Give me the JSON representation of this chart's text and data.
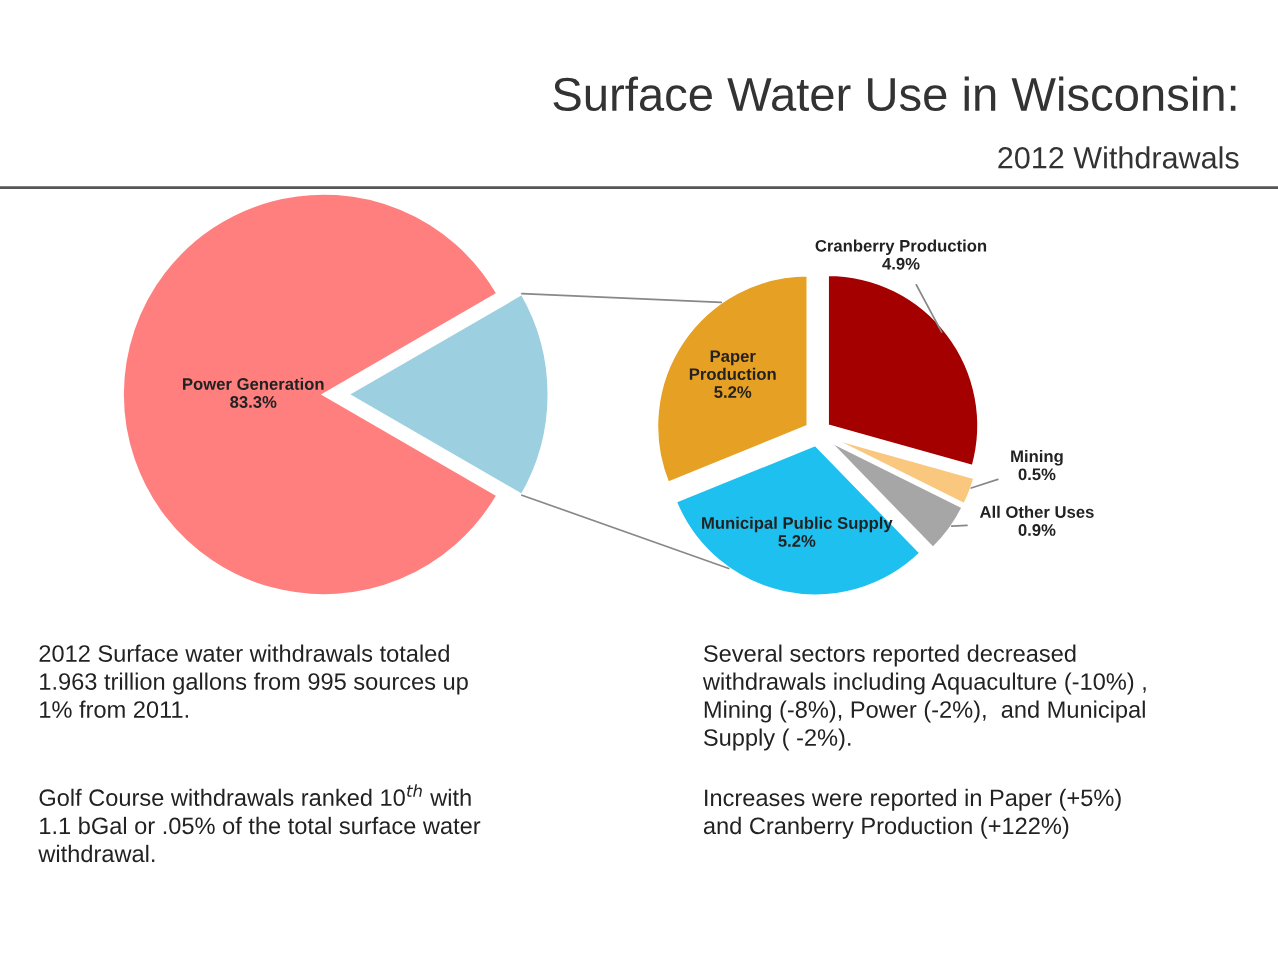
{
  "chart_data": [
    {
      "type": "pie",
      "categories": [
        "Power Generation",
        null
      ],
      "values": [
        83.3,
        16.7
      ],
      "colors": [
        "#ff7f7f",
        "#9ccfe0"
      ],
      "value_labels": [
        "83.3%",
        null
      ],
      "annotations": [
        "2012 Surface water withdrawals totaled\n1.963 trillion gallons from 995 sources up\n1% from 2011.",
        "Golf Course withdrawals ranked 10$^{th}$ with\n1.1 bGal or .05% of the total surface water\nwithdrawal."
      ]
    },
    {
      "type": "pie",
      "title": "Surface Water Use in Wisconsin:",
      "subtitle": "2012 Withdrawals",
      "categories": [
        "Cranberry Production",
        "Mining",
        "All Other Uses",
        "Municipal Public Supply",
        "Paper\nProduction"
      ],
      "values": [
        4.9,
        0.5,
        0.9,
        5.2,
        5.2
      ],
      "colors": [
        "#a50000",
        "#f9c77e",
        "#a6a6a6",
        "#1ec0f0",
        "#e6a024"
      ],
      "value_labels": [
        "4.9%",
        "0.5%",
        "0.9%",
        "5.2%",
        "5.2%"
      ],
      "annotations": [
        "Several sectors reported decreased\nwithdrawals including Aquaculture (-10%) ,\nMining (-8%), Power (-2%),  and Municipal\nSupply ( -2%).",
        "Increases were reported in Paper (+5%)\nand Cranberry Production (+122%)"
      ]
    }
  ]
}
